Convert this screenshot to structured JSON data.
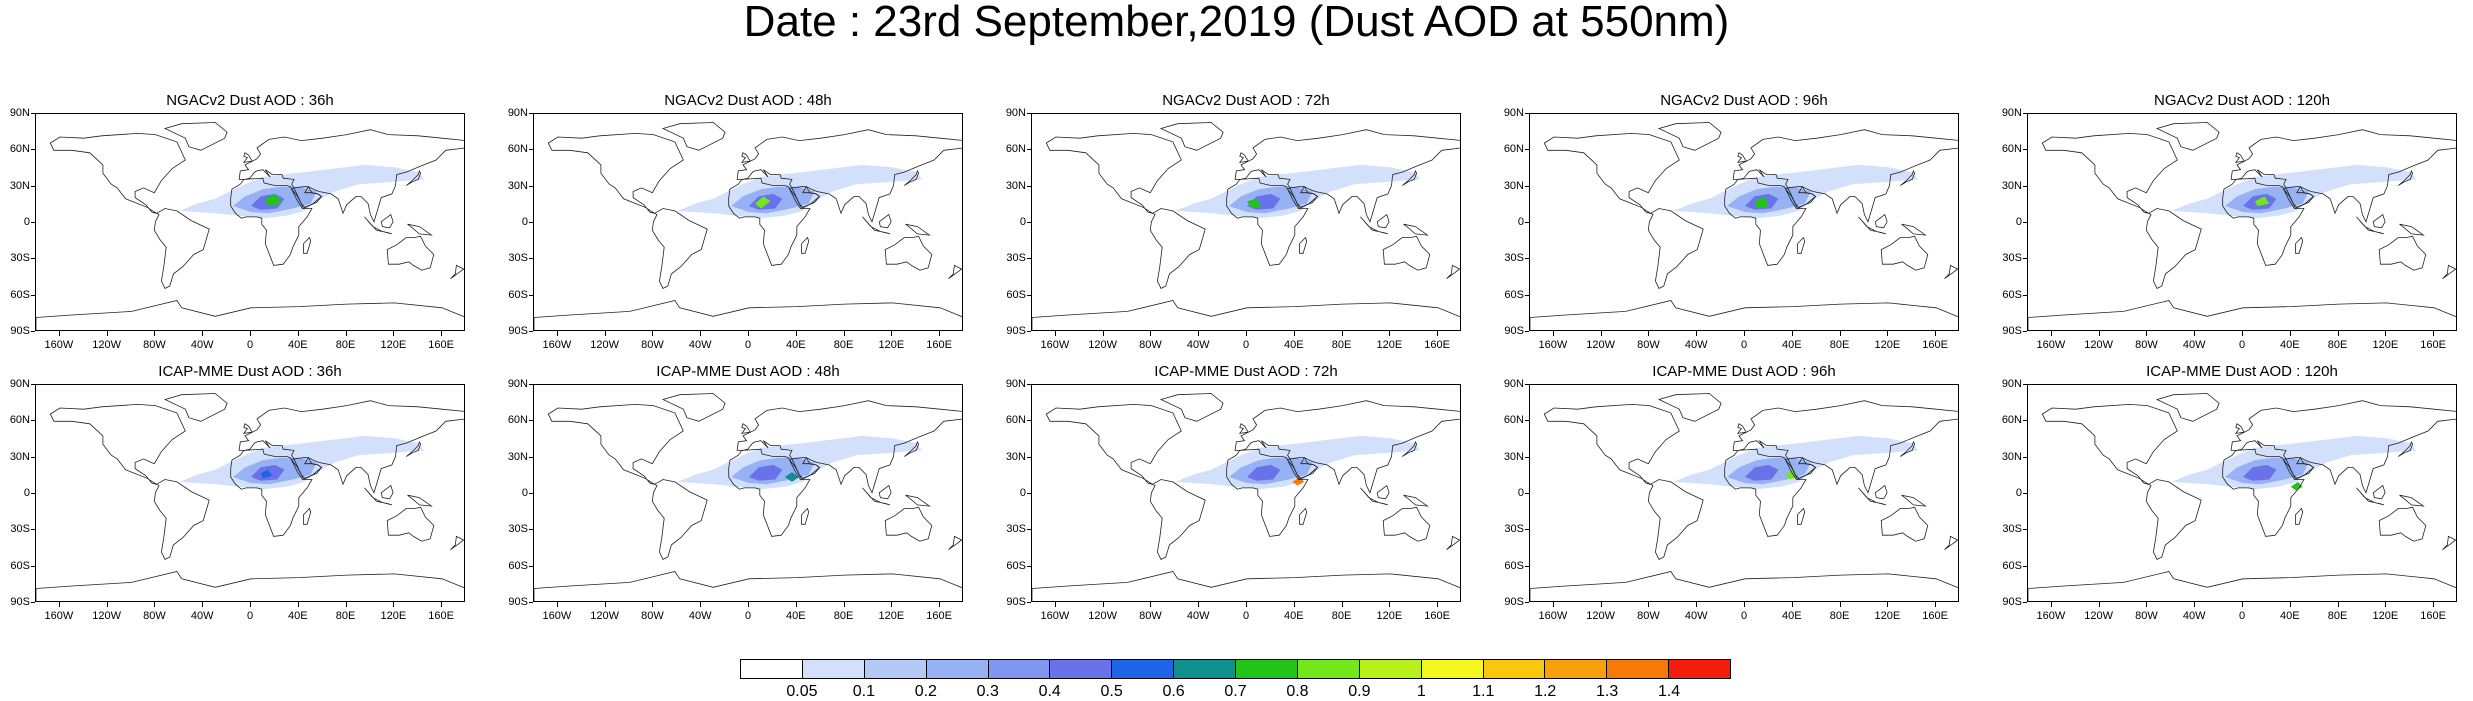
{
  "title": "Date : 23rd September,2019 (Dust AOD at 550nm)",
  "lat_labels": [
    "90N",
    "60N",
    "30N",
    "0",
    "30S",
    "60S",
    "90S"
  ],
  "lon_labels": [
    "160W",
    "120W",
    "80W",
    "40W",
    "0",
    "40E",
    "80E",
    "120E",
    "160E"
  ],
  "rows": [
    {
      "model": "NGACv2",
      "panels": [
        {
          "title": "NGACv2 Dust AOD : 36h",
          "forecast_hour": 36
        },
        {
          "title": "NGACv2 Dust AOD : 48h",
          "forecast_hour": 48
        },
        {
          "title": "NGACv2 Dust AOD : 72h",
          "forecast_hour": 72
        },
        {
          "title": "NGACv2 Dust AOD : 96h",
          "forecast_hour": 96
        },
        {
          "title": "NGACv2 Dust AOD : 120h",
          "forecast_hour": 120
        }
      ]
    },
    {
      "model": "ICAP-MME",
      "panels": [
        {
          "title": "ICAP-MME Dust AOD : 36h",
          "forecast_hour": 36
        },
        {
          "title": "ICAP-MME Dust AOD : 48h",
          "forecast_hour": 48
        },
        {
          "title": "ICAP-MME Dust AOD : 72h",
          "forecast_hour": 72
        },
        {
          "title": "ICAP-MME Dust AOD : 96h",
          "forecast_hour": 96
        },
        {
          "title": "ICAP-MME Dust AOD : 120h",
          "forecast_hour": 120
        }
      ]
    }
  ],
  "colorbar": {
    "labels": [
      "0.05",
      "0.1",
      "0.2",
      "0.3",
      "0.4",
      "0.5",
      "0.6",
      "0.7",
      "0.8",
      "0.9",
      "1",
      "1.1",
      "1.2",
      "1.3",
      "1.4"
    ],
    "colors": [
      "#ffffff",
      "#d3e0fb",
      "#b5c9f7",
      "#96b2f5",
      "#7f97f1",
      "#6a72ea",
      "#1e64e6",
      "#108f8f",
      "#22c41a",
      "#72e81a",
      "#b8f21b",
      "#f6f71c",
      "#f9c80c",
      "#f9a00a",
      "#f77a08",
      "#f31d0c"
    ]
  }
}
